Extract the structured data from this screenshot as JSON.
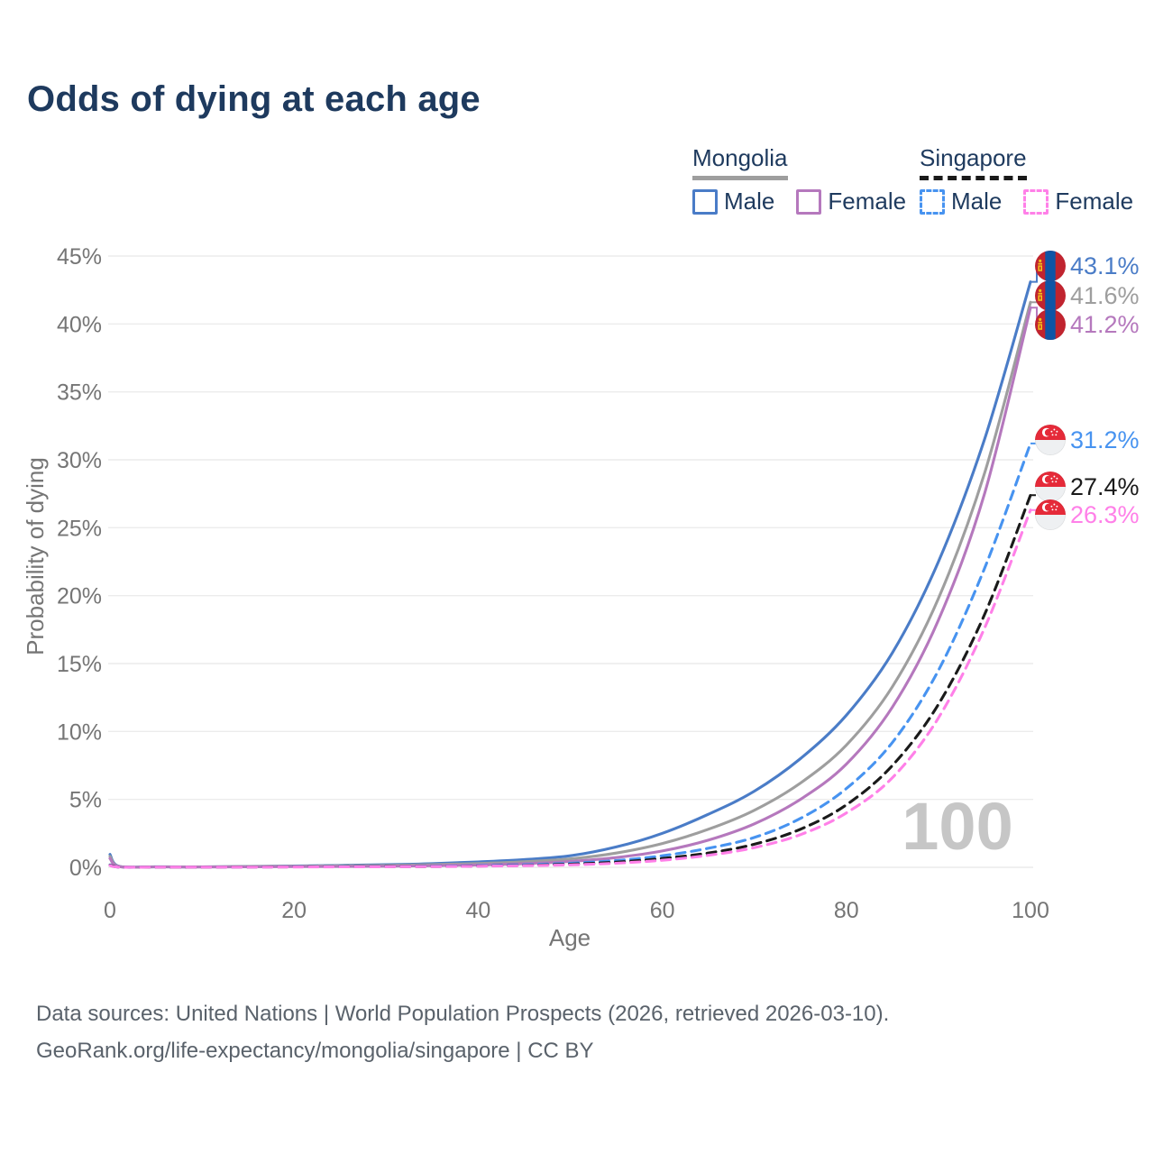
{
  "page": {
    "title": "Odds of dying at each age"
  },
  "legend": {
    "groups": [
      {
        "name": "Mongolia",
        "line_style": "solid",
        "items": [
          {
            "label": "Male"
          },
          {
            "label": "Female"
          }
        ]
      },
      {
        "name": "Singapore",
        "line_style": "dashed",
        "items": [
          {
            "label": "Male"
          },
          {
            "label": "Female"
          }
        ]
      }
    ]
  },
  "watermark_hover_age": "100",
  "footer": {
    "line1": "Data sources: United Nations | World Population Prospects (2026, retrieved 2026-03-10).",
    "line2": "GeoRank.org/life-expectancy/mongolia/singapore | CC BY"
  },
  "colors": {
    "title_text": "#1e3a5e",
    "axis_text": "#757575",
    "grid": "#ececec",
    "watermark": "#c6c6c6",
    "footer_text": "#5a626b",
    "legend_underline_mongolia": "#9e9e9e",
    "legend_underline_singapore": "#1a1a1a"
  },
  "flag_colors": {
    "mongolia": {
      "red": "#c0242f",
      "blue": "#0e55a6",
      "yellow": "#f2c318"
    },
    "singapore": {
      "red": "#e52a39",
      "white": "#ffffff",
      "base": "#eef0f2"
    }
  },
  "chart_data": {
    "type": "line",
    "title": "Odds of dying at each age",
    "xlabel": "Age",
    "ylabel": "Probability of dying",
    "xlim": [
      0,
      100
    ],
    "ylim": [
      0,
      45
    ],
    "x_ticks": [
      0,
      20,
      40,
      60,
      80,
      100
    ],
    "y_ticks_percent": [
      0,
      5,
      10,
      15,
      20,
      25,
      30,
      35,
      40,
      45
    ],
    "grid": "horizontal",
    "legend_position": "top-right",
    "x": [
      0,
      1,
      5,
      10,
      15,
      20,
      25,
      30,
      35,
      40,
      45,
      50,
      55,
      60,
      65,
      70,
      75,
      80,
      85,
      90,
      95,
      100
    ],
    "series": [
      {
        "name": "Mongolia Male",
        "country": "Mongolia",
        "sex": "male",
        "style": "solid",
        "flag": "mongolia",
        "color": "#4a7cc7",
        "label_color": "#4a7cc7",
        "end_label": "43.1%",
        "end_value": 43.1,
        "values": [
          0.95,
          0.07,
          0.04,
          0.03,
          0.06,
          0.1,
          0.14,
          0.19,
          0.27,
          0.4,
          0.57,
          0.85,
          1.5,
          2.5,
          3.9,
          5.6,
          8.0,
          11.2,
          15.8,
          22.5,
          31.5,
          43.1
        ]
      },
      {
        "name": "Mongolia Both sexes",
        "country": "Mongolia",
        "sex": "both",
        "style": "solid",
        "flag": "mongolia",
        "color": "#9e9e9e",
        "label_color": "#9e9e9e",
        "end_label": "41.6%",
        "end_value": 41.6,
        "values": [
          0.8,
          0.06,
          0.03,
          0.03,
          0.05,
          0.08,
          0.11,
          0.14,
          0.19,
          0.28,
          0.41,
          0.62,
          1.05,
          1.75,
          2.8,
          4.2,
          6.2,
          9.0,
          13.3,
          19.8,
          29.0,
          41.6
        ]
      },
      {
        "name": "Mongolia Female",
        "country": "Mongolia",
        "sex": "female",
        "style": "solid",
        "flag": "mongolia",
        "color": "#b578bd",
        "label_color": "#b578bd",
        "end_label": "41.2%",
        "end_value": 41.2,
        "values": [
          0.65,
          0.05,
          0.03,
          0.02,
          0.03,
          0.05,
          0.06,
          0.08,
          0.12,
          0.17,
          0.27,
          0.43,
          0.72,
          1.2,
          2.0,
          3.2,
          5.0,
          7.6,
          11.8,
          18.2,
          27.5,
          41.2
        ]
      },
      {
        "name": "Singapore Male",
        "country": "Singapore",
        "sex": "male",
        "style": "dashed",
        "flag": "singapore",
        "color": "#4793f0",
        "label_color": "#4793f0",
        "end_label": "31.2%",
        "end_value": 31.2,
        "values": [
          0.18,
          0.02,
          0.01,
          0.01,
          0.02,
          0.04,
          0.05,
          0.06,
          0.08,
          0.12,
          0.19,
          0.3,
          0.5,
          0.85,
          1.4,
          2.2,
          3.6,
          5.8,
          9.2,
          14.5,
          22.0,
          31.2
        ]
      },
      {
        "name": "Singapore Both sexes",
        "country": "Singapore",
        "sex": "both",
        "style": "dashed",
        "flag": "singapore",
        "color": "#1a1a1a",
        "label_color": "#1a1a1a",
        "end_label": "27.4%",
        "end_value": 27.4,
        "values": [
          0.16,
          0.02,
          0.01,
          0.01,
          0.02,
          0.03,
          0.04,
          0.05,
          0.06,
          0.09,
          0.14,
          0.23,
          0.38,
          0.65,
          1.05,
          1.7,
          2.8,
          4.6,
          7.5,
          12.0,
          18.6,
          27.4
        ]
      },
      {
        "name": "Singapore Female",
        "country": "Singapore",
        "sex": "female",
        "style": "dashed",
        "flag": "singapore",
        "color": "#ff80e8",
        "label_color": "#ff80e8",
        "end_label": "26.3%",
        "end_value": 26.3,
        "values": [
          0.13,
          0.01,
          0.01,
          0.01,
          0.01,
          0.02,
          0.03,
          0.04,
          0.05,
          0.08,
          0.12,
          0.18,
          0.3,
          0.52,
          0.88,
          1.45,
          2.4,
          4.0,
          6.6,
          11.0,
          17.6,
          26.3
        ]
      }
    ]
  }
}
